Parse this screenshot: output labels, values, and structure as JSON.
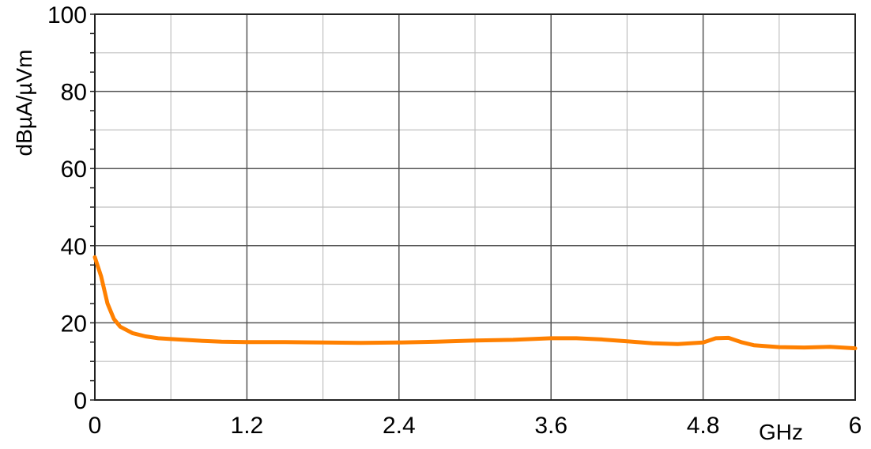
{
  "chart_data": {
    "type": "line",
    "title": "",
    "xlabel": "GHz",
    "ylabel": "dBµA/µVm",
    "xlim": [
      0,
      6
    ],
    "ylim": [
      0,
      100
    ],
    "x_ticks": [
      "0",
      "1.2",
      "2.4",
      "3.6",
      "4.8",
      "6"
    ],
    "y_ticks": [
      "0",
      "20",
      "40",
      "60",
      "80",
      "100"
    ],
    "grid": true,
    "series": [
      {
        "color": "#ff8000",
        "x": [
          0,
          0.05,
          0.1,
          0.15,
          0.2,
          0.3,
          0.4,
          0.5,
          0.6,
          0.8,
          1.0,
          1.2,
          1.5,
          1.8,
          2.1,
          2.4,
          2.7,
          3.0,
          3.3,
          3.6,
          3.8,
          4.0,
          4.2,
          4.4,
          4.6,
          4.8,
          4.9,
          5.0,
          5.1,
          5.2,
          5.4,
          5.6,
          5.8,
          6.0
        ],
        "y": [
          37,
          32,
          25,
          21,
          19,
          17.3,
          16.5,
          16,
          15.8,
          15.4,
          15.1,
          15,
          15,
          14.9,
          14.8,
          14.9,
          15.1,
          15.4,
          15.6,
          16,
          16,
          15.7,
          15.2,
          14.7,
          14.5,
          14.9,
          16,
          16.1,
          15,
          14.2,
          13.7,
          13.6,
          13.8,
          13.4
        ]
      }
    ]
  }
}
